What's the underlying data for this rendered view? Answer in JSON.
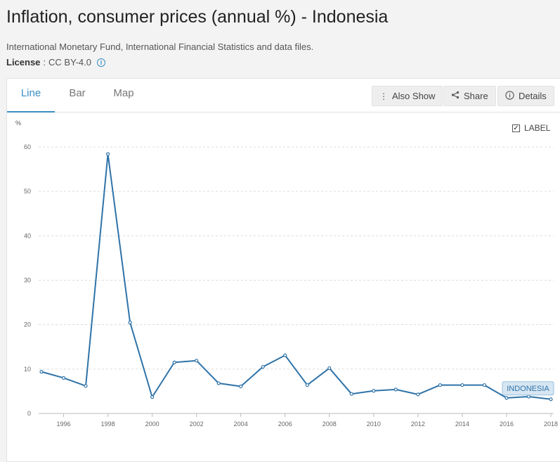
{
  "header": {
    "title": "Inflation, consumer prices (annual %) - Indonesia",
    "source": "International Monetary Fund, International Financial Statistics and data files.",
    "license_label": "License",
    "license_sep": " : ",
    "license_value": "CC BY-4.0"
  },
  "tabs": [
    {
      "label": "Line",
      "active": true
    },
    {
      "label": "Bar",
      "active": false
    },
    {
      "label": "Map",
      "active": false
    }
  ],
  "toolbar": {
    "also_show": "Also Show",
    "share": "Share",
    "details": "Details"
  },
  "label_toggle": {
    "label": "LABEL",
    "checked": true
  },
  "colors": {
    "line": "#2f73a8",
    "accent": "#3a8ec3",
    "badge_bg": "#d6e6f2"
  },
  "chart_data": {
    "type": "line",
    "ylabel": "%",
    "ylim": [
      0,
      60
    ],
    "yticks": [
      0,
      10,
      20,
      30,
      40,
      50,
      60
    ],
    "xticks": [
      1996,
      1998,
      2000,
      2002,
      2004,
      2006,
      2008,
      2010,
      2012,
      2014,
      2016,
      2018
    ],
    "grid": true,
    "series": [
      {
        "name": "INDONESIA",
        "x": [
          1995,
          1996,
          1997,
          1998,
          1999,
          2000,
          2001,
          2002,
          2003,
          2004,
          2005,
          2006,
          2007,
          2008,
          2009,
          2010,
          2011,
          2012,
          2013,
          2014,
          2015,
          2016,
          2017,
          2018
        ],
        "values": [
          9.4,
          8.0,
          6.2,
          58.4,
          20.5,
          3.7,
          11.5,
          11.9,
          6.8,
          6.1,
          10.5,
          13.1,
          6.4,
          10.2,
          4.4,
          5.1,
          5.4,
          4.3,
          6.4,
          6.4,
          6.4,
          3.5,
          3.8,
          3.2
        ]
      }
    ]
  }
}
